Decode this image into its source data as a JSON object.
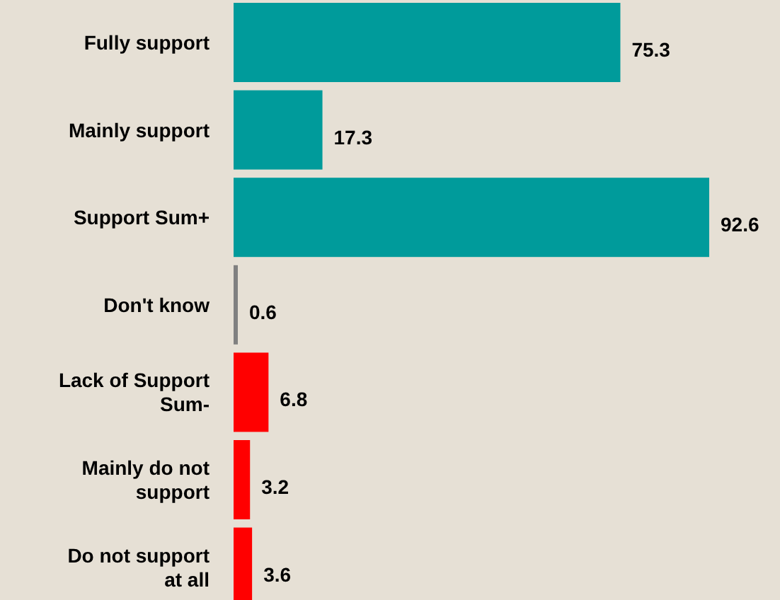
{
  "chart_data": {
    "type": "bar",
    "orientation": "horizontal",
    "categories": [
      "Fully support",
      "Mainly support",
      "Support Sum+",
      "Don't know",
      "Lack of Support Sum-",
      "Mainly do not support",
      "Do not support at all"
    ],
    "values": [
      75.3,
      17.3,
      92.6,
      0.6,
      6.8,
      3.2,
      3.6
    ],
    "colors": [
      "#009b9b",
      "#009b9b",
      "#009b9b",
      "#808080",
      "#ff0000",
      "#ff0000",
      "#ff0000"
    ],
    "data_labels": true
  }
}
